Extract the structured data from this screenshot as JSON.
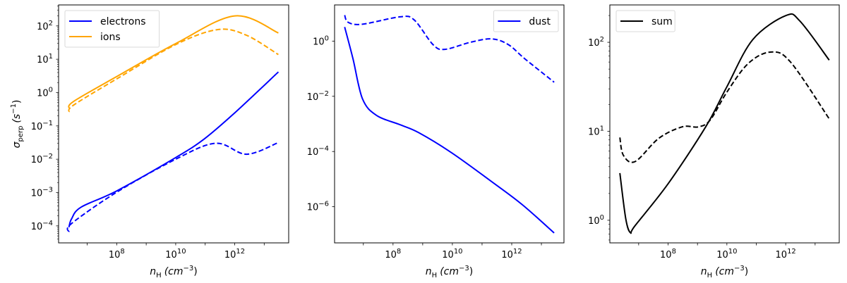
{
  "chart_data": [
    {
      "type": "line",
      "panel": "left",
      "xscale": "log",
      "yscale": "log",
      "xlabel": {
        "main": "n",
        "sub": "H",
        "unit": "(cm",
        "exp": "−3",
        "close": ")"
      },
      "ylabel": {
        "main": "σ",
        "sub": "perp",
        "unit": "(s",
        "exp": "−1",
        "close": ")"
      },
      "xlim_log10": [
        6.03,
        13.83
      ],
      "ylim_log10": [
        -4.51,
        2.63
      ],
      "xticks_log10": [
        8,
        10,
        12
      ],
      "yticks_log10": [
        -4,
        -3,
        -2,
        -1,
        0,
        1,
        2
      ],
      "legend": {
        "position": "top-left",
        "entries": [
          {
            "label": "electrons",
            "color": "#0000ff"
          },
          {
            "label": "ions",
            "color": "#ffa500"
          }
        ]
      },
      "series": [
        {
          "name": "electrons",
          "style": "solid",
          "color": "#0000ff",
          "log10_x": [
            6.38,
            6.47,
            6.79,
            8.0,
            10.0,
            10.97,
            12.0,
            13.48
          ],
          "log10_y": [
            -4.04,
            -3.79,
            -3.44,
            -2.95,
            -1.95,
            -1.39,
            -0.61,
            0.62
          ]
        },
        {
          "name": "electrons (dashed)",
          "style": "dashed",
          "color": "#0000ff",
          "log10_x": [
            6.38,
            6.47,
            8.0,
            10.0,
            11.36,
            12.4,
            13.48
          ],
          "log10_y": [
            -4.18,
            -3.93,
            -2.99,
            -2.0,
            -1.52,
            -1.85,
            -1.5
          ]
        },
        {
          "name": "ions",
          "style": "solid",
          "color": "#ffa500",
          "log10_x": [
            6.38,
            6.55,
            8.0,
            10.0,
            12.0,
            13.48
          ],
          "log10_y": [
            -0.47,
            -0.26,
            0.48,
            1.47,
            2.3,
            1.79
          ]
        },
        {
          "name": "ions (dashed)",
          "style": "dashed",
          "color": "#ffa500",
          "log10_x": [
            6.38,
            6.55,
            8.0,
            10.0,
            11.43,
            12.4,
            13.48
          ],
          "log10_y": [
            -0.58,
            -0.37,
            0.41,
            1.44,
            1.89,
            1.72,
            1.14
          ]
        }
      ]
    },
    {
      "type": "line",
      "panel": "middle",
      "xscale": "log",
      "yscale": "log",
      "xlabel": {
        "main": "n",
        "sub": "H",
        "unit": "(cm",
        "exp": "−3",
        "close": ")"
      },
      "xlim_log10": [
        6.03,
        13.76
      ],
      "ylim_log10": [
        -7.31,
        1.31
      ],
      "xticks_log10": [
        8,
        10,
        12
      ],
      "yticks_log10": [
        -6,
        -4,
        -2,
        0
      ],
      "legend": {
        "position": "top-right",
        "entries": [
          {
            "label": "dust",
            "color": "#0000ff"
          }
        ]
      },
      "series": [
        {
          "name": "dust",
          "style": "solid",
          "color": "#0000ff",
          "log10_x": [
            6.37,
            6.65,
            6.97,
            7.44,
            8.24,
            8.87,
            9.98,
            11.41,
            12.36,
            13.43
          ],
          "log10_y": [
            0.51,
            -0.64,
            -2.09,
            -2.69,
            -3.03,
            -3.32,
            -4.05,
            -5.16,
            -5.93,
            -6.95
          ]
        },
        {
          "name": "dust (dashed)",
          "style": "dashed",
          "color": "#0000ff",
          "log10_x": [
            6.37,
            6.49,
            6.97,
            8.24,
            8.71,
            9.35,
            9.75,
            10.62,
            11.33,
            11.89,
            12.44,
            13.43
          ],
          "log10_y": [
            0.94,
            0.68,
            0.61,
            0.88,
            0.77,
            -0.13,
            -0.3,
            -0.04,
            0.08,
            -0.13,
            -0.64,
            -1.49
          ]
        }
      ]
    },
    {
      "type": "line",
      "panel": "right",
      "xscale": "log",
      "yscale": "log",
      "xlabel": {
        "main": "n",
        "sub": "H",
        "unit": "(cm",
        "exp": "−3",
        "close": ")"
      },
      "xlim_log10": [
        6.02,
        13.82
      ],
      "ylim_log10": [
        -0.254,
        2.42
      ],
      "xticks_log10": [
        8,
        10,
        12
      ],
      "yticks_log10": [
        0,
        1,
        2
      ],
      "legend": {
        "position": "top-left",
        "entries": [
          {
            "label": "sum",
            "color": "#000000"
          }
        ]
      },
      "series": [
        {
          "name": "sum",
          "style": "solid",
          "color": "#000000",
          "log10_x": [
            6.36,
            6.56,
            6.72,
            6.88,
            8.0,
            9.28,
            10.0,
            10.88,
            12.0,
            12.48,
            13.48
          ],
          "log10_y": [
            0.53,
            0.02,
            -0.14,
            -0.06,
            0.41,
            1.05,
            1.5,
            2.03,
            2.3,
            2.24,
            1.8
          ]
        },
        {
          "name": "sum (dashed)",
          "style": "dashed",
          "color": "#000000",
          "log10_x": [
            6.36,
            6.48,
            6.88,
            7.68,
            8.48,
            9.04,
            9.44,
            10.0,
            10.72,
            11.48,
            12.16,
            13.48
          ],
          "log10_y": [
            0.93,
            0.73,
            0.66,
            0.92,
            1.05,
            1.05,
            1.13,
            1.44,
            1.76,
            1.89,
            1.78,
            1.14
          ]
        }
      ]
    }
  ]
}
